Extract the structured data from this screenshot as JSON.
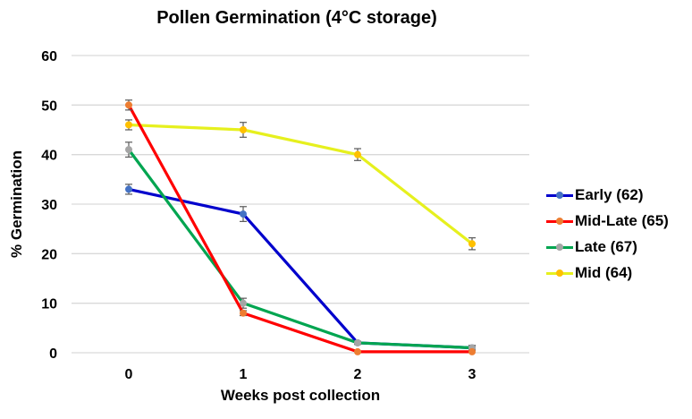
{
  "chart_data": {
    "type": "line",
    "title": "Pollen Germination (4°C storage)",
    "xlabel": "Weeks post collection",
    "ylabel": "% Germination",
    "categories": [
      "0",
      "1",
      "2",
      "3"
    ],
    "ylim": [
      0,
      60
    ],
    "yticks": [
      "0",
      "10",
      "20",
      "30",
      "40",
      "50",
      "60"
    ],
    "grid": "horizontal",
    "legend_position": "right",
    "error_bars": true,
    "series": [
      {
        "name": "Early (62)",
        "line_color": "#0000CC",
        "marker_color": "#4472C4",
        "values": [
          33,
          28,
          2,
          1
        ],
        "errors": [
          1,
          1.5,
          0.3,
          0.3
        ]
      },
      {
        "name": "Mid-Late (65)",
        "line_color": "#FF0000",
        "marker_color": "#ED7D31",
        "values": [
          50,
          8,
          0.2,
          0.2
        ],
        "errors": [
          1,
          0.5,
          0.2,
          0.2
        ]
      },
      {
        "name": "Late (67)",
        "line_color": "#00A550",
        "marker_color": "#A5A5A5",
        "values": [
          41,
          10,
          2,
          1
        ],
        "errors": [
          1.5,
          1,
          0.3,
          0.5
        ]
      },
      {
        "name": "Mid (64)",
        "line_color": "#E6F01E",
        "marker_color": "#FFC000",
        "values": [
          46,
          45,
          40,
          22
        ],
        "errors": [
          1,
          1.5,
          1.2,
          1.2
        ]
      }
    ]
  },
  "legend": {
    "items": [
      {
        "label": "Early (62)"
      },
      {
        "label": "Mid-Late (65)"
      },
      {
        "label": "Late (67)"
      },
      {
        "label": "Mid (64)"
      }
    ]
  }
}
